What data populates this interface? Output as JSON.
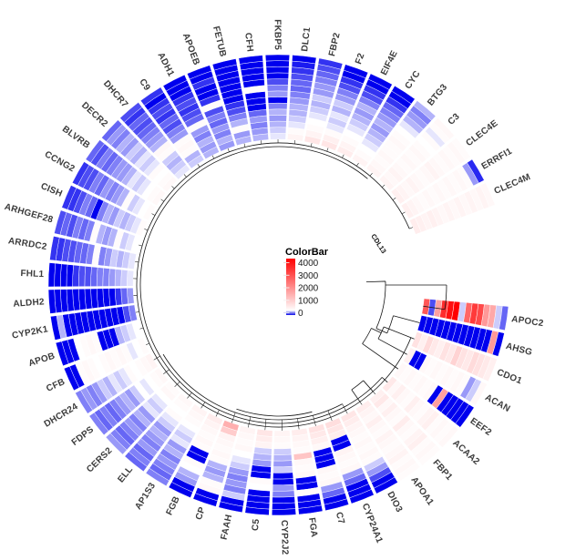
{
  "chart_data": {
    "type": "heatmap",
    "layout": "circular",
    "n_rings": 14,
    "ring_order": "inner_to_outer",
    "gap": {
      "start_deg": -5,
      "span_deg": 25
    },
    "center_annotation": "CDL13",
    "colorbar": {
      "title": "ColorBar",
      "ticks": [
        "4000",
        "3000",
        "2000",
        "1000",
        "0"
      ],
      "color_max": "#FF0000",
      "color_mid": "#FFFFFF",
      "color_zero": "#0000EE"
    },
    "genes_clockwise_from_gap": [
      "APOC2",
      "AHSG",
      "CDO1",
      "ACAN",
      "EEF2",
      "ACAA2",
      "FBP1",
      "APOA1",
      "DIO3",
      "CYP24A1",
      "C7",
      "FGA",
      "CYP2J2",
      "C5",
      "FAAH",
      "CP",
      "FGB",
      "AP1S3",
      "ELL",
      "CERS2",
      "FDPS",
      "DHCR24",
      "CFB",
      "APOB",
      "CYP2K1",
      "ALDH2",
      "FHL1",
      "ARRDC2",
      "ARHGEF28",
      "CISH",
      "CCNG2",
      "BLVRB",
      "DECR2",
      "DHCR7",
      "C9",
      "ADH1",
      "APOEB",
      "FETUB",
      "CFH",
      "FKBP5",
      "DLC1",
      "FBP2",
      "F2",
      "EIF4E",
      "CYC",
      "BTG3",
      "C3",
      "CLEC4E",
      "ERRFI1",
      "CLEC4M"
    ],
    "series": [
      {
        "name": "APOC2",
        "values": [
          2800,
          150,
          1800,
          3400,
          3800,
          4000,
          400,
          2600,
          3200,
          3000,
          1900,
          1700,
          400,
          200
        ]
      },
      {
        "name": "AHSG",
        "values": [
          0,
          0,
          0,
          0,
          0,
          0,
          0,
          0,
          0,
          0,
          0,
          0,
          1900,
          0
        ]
      },
      {
        "name": "CDO1",
        "values": [
          900,
          700,
          1000,
          800,
          700,
          900,
          800,
          1100,
          900,
          800,
          1000,
          900,
          800,
          700
        ]
      },
      {
        "name": "ACAN",
        "values": [
          700,
          0,
          0,
          600,
          550,
          600,
          550,
          600,
          550,
          600,
          550,
          300,
          400,
          600
        ]
      },
      {
        "name": "EEF2",
        "values": [
          600,
          550,
          600,
          550,
          600,
          550,
          600,
          0,
          1800,
          0,
          0,
          0,
          0,
          0
        ]
      },
      {
        "name": "ACAA2",
        "values": [
          800,
          600,
          700,
          600,
          550,
          700,
          600,
          550,
          650,
          700,
          550,
          600,
          550,
          600
        ]
      },
      {
        "name": "FBP1",
        "values": [
          700,
          800,
          600,
          700,
          600,
          550,
          750,
          600,
          550,
          650,
          700,
          550,
          600,
          550
        ]
      },
      {
        "name": "APOA1",
        "values": [
          750,
          650,
          600,
          700,
          600,
          550,
          650,
          600,
          550,
          600,
          650,
          550,
          600,
          550
        ]
      },
      {
        "name": "DIO3",
        "values": [
          850,
          750,
          650,
          600,
          550,
          600,
          550,
          600,
          550,
          400,
          300,
          150,
          0,
          0
        ]
      },
      {
        "name": "CYP24A1",
        "values": [
          950,
          850,
          750,
          0,
          0,
          650,
          600,
          550,
          600,
          300,
          200,
          0,
          0,
          0
        ]
      },
      {
        "name": "C7",
        "values": [
          900,
          800,
          700,
          600,
          0,
          0,
          0,
          600,
          550,
          600,
          300,
          200,
          0,
          0
        ]
      },
      {
        "name": "FGA",
        "values": [
          750,
          650,
          600,
          550,
          1300,
          600,
          550,
          600,
          0,
          0,
          550,
          0,
          0,
          0
        ]
      },
      {
        "name": "CYP2J2",
        "values": [
          650,
          600,
          550,
          400,
          350,
          300,
          400,
          0,
          0,
          300,
          250,
          0,
          0,
          0
        ]
      },
      {
        "name": "C5",
        "values": [
          850,
          750,
          650,
          400,
          350,
          300,
          0,
          0,
          550,
          500,
          0,
          0,
          0,
          0
        ]
      },
      {
        "name": "FAAH",
        "values": [
          650,
          600,
          550,
          600,
          500,
          450,
          400,
          300,
          250,
          300,
          250,
          400,
          0,
          0
        ]
      },
      {
        "name": "CP",
        "values": [
          1600,
          1200,
          650,
          600,
          550,
          600,
          550,
          350,
          300,
          350,
          550,
          600,
          0,
          0
        ]
      },
      {
        "name": "FGB",
        "values": [
          750,
          650,
          600,
          550,
          600,
          550,
          0,
          0,
          550,
          500,
          350,
          300,
          0,
          0
        ]
      },
      {
        "name": "AP1S3",
        "values": [
          650,
          600,
          550,
          500,
          450,
          400,
          450,
          300,
          350,
          250,
          300,
          250,
          200,
          250
        ]
      },
      {
        "name": "ELL",
        "values": [
          600,
          550,
          500,
          550,
          450,
          400,
          300,
          350,
          300,
          250,
          300,
          200,
          250,
          200
        ]
      },
      {
        "name": "CERS2",
        "values": [
          550,
          600,
          500,
          450,
          400,
          450,
          300,
          350,
          250,
          300,
          250,
          200,
          250,
          300
        ]
      },
      {
        "name": "FDPS",
        "values": [
          600,
          550,
          500,
          450,
          500,
          400,
          300,
          350,
          300,
          250,
          200,
          250,
          200,
          250
        ]
      },
      {
        "name": "DHCR24",
        "values": [
          650,
          600,
          550,
          500,
          550,
          450,
          400,
          450,
          350,
          400,
          300,
          250,
          300,
          250
        ]
      },
      {
        "name": "CFB",
        "values": [
          550,
          500,
          450,
          550,
          600,
          550,
          600,
          550,
          500,
          550,
          600,
          550,
          0,
          0
        ]
      },
      {
        "name": "APOB",
        "values": [
          500,
          450,
          400,
          350,
          0,
          0,
          0,
          550,
          600,
          550,
          500,
          0,
          0,
          0
        ]
      },
      {
        "name": "CYP2K1",
        "values": [
          250,
          150,
          0,
          0,
          0,
          0,
          0,
          0,
          0,
          0,
          0,
          0,
          350,
          0
        ]
      },
      {
        "name": "ALDH2",
        "values": [
          300,
          200,
          100,
          0,
          0,
          0,
          0,
          0,
          0,
          0,
          0,
          0,
          0,
          0
        ]
      },
      {
        "name": "FHL1",
        "values": [
          450,
          400,
          350,
          300,
          250,
          250,
          200,
          150,
          150,
          100,
          0,
          0,
          0,
          0
        ]
      },
      {
        "name": "ARRDC2",
        "values": [
          450,
          400,
          350,
          400,
          300,
          250,
          550,
          250,
          200,
          200,
          150,
          150,
          100,
          100
        ]
      },
      {
        "name": "ARHGEF28",
        "values": [
          500,
          450,
          400,
          550,
          350,
          300,
          350,
          550,
          250,
          200,
          250,
          150,
          200,
          150
        ]
      },
      {
        "name": "CISH",
        "values": [
          550,
          450,
          400,
          350,
          400,
          300,
          350,
          250,
          0,
          200,
          250,
          150,
          100,
          100
        ]
      },
      {
        "name": "CCNG2",
        "values": [
          550,
          500,
          450,
          400,
          550,
          350,
          300,
          250,
          300,
          200,
          250,
          150,
          150,
          100
        ]
      },
      {
        "name": "BLVRB",
        "values": [
          600,
          550,
          500,
          450,
          400,
          450,
          350,
          300,
          300,
          250,
          200,
          250,
          150,
          200
        ]
      },
      {
        "name": "DECR2",
        "values": [
          600,
          550,
          500,
          550,
          450,
          400,
          450,
          350,
          400,
          300,
          350,
          250,
          300,
          200
        ]
      },
      {
        "name": "DHCR7",
        "values": [
          450,
          400,
          350,
          400,
          550,
          600,
          350,
          300,
          250,
          200,
          150,
          200,
          100,
          150
        ]
      },
      {
        "name": "C9",
        "values": [
          400,
          350,
          550,
          600,
          550,
          300,
          250,
          150,
          200,
          100,
          150,
          100,
          0,
          100
        ]
      },
      {
        "name": "ADH1",
        "values": [
          350,
          300,
          350,
          250,
          300,
          550,
          200,
          150,
          100,
          150,
          100,
          0,
          0,
          0
        ]
      },
      {
        "name": "APOEB",
        "values": [
          300,
          350,
          250,
          300,
          200,
          250,
          150,
          550,
          100,
          0,
          0,
          100,
          0,
          0
        ]
      },
      {
        "name": "FETUB",
        "values": [
          350,
          300,
          550,
          350,
          250,
          150,
          100,
          0,
          0,
          0,
          0,
          0,
          0,
          0
        ]
      },
      {
        "name": "CFH",
        "values": [
          350,
          300,
          250,
          300,
          200,
          0,
          0,
          0,
          550,
          0,
          0,
          0,
          0,
          0
        ]
      },
      {
        "name": "FKBP5",
        "values": [
          450,
          400,
          350,
          300,
          350,
          250,
          0,
          300,
          250,
          150,
          0,
          0,
          0,
          0
        ]
      },
      {
        "name": "DLC1",
        "values": [
          650,
          550,
          450,
          400,
          350,
          350,
          300,
          250,
          200,
          200,
          150,
          100,
          50,
          0
        ]
      },
      {
        "name": "FBP2",
        "values": [
          850,
          650,
          550,
          500,
          450,
          400,
          350,
          400,
          300,
          300,
          250,
          200,
          150,
          100
        ]
      },
      {
        "name": "F2",
        "values": [
          850,
          700,
          550,
          450,
          400,
          450,
          350,
          400,
          300,
          250,
          150,
          100,
          0,
          0
        ]
      },
      {
        "name": "EIF4E",
        "values": [
          750,
          650,
          550,
          500,
          450,
          400,
          350,
          300,
          350,
          250,
          150,
          100,
          0,
          0
        ]
      },
      {
        "name": "CYC",
        "values": [
          650,
          550,
          500,
          450,
          400,
          350,
          300,
          350,
          300,
          250,
          200,
          100,
          0,
          0
        ]
      },
      {
        "name": "BTG3",
        "values": [
          650,
          600,
          550,
          600,
          550,
          550,
          600,
          550,
          500,
          450,
          350,
          300,
          250,
          350
        ]
      },
      {
        "name": "C3",
        "values": [
          650,
          600,
          650,
          600,
          550,
          600,
          550,
          600,
          550,
          500,
          550,
          450,
          550,
          600
        ]
      },
      {
        "name": "CLEC4E",
        "values": [
          700,
          650,
          600,
          650,
          600,
          550,
          600,
          650,
          600,
          550,
          600,
          550,
          600,
          550
        ]
      },
      {
        "name": "ERRFI1",
        "values": [
          700,
          650,
          600,
          550,
          600,
          550,
          600,
          550,
          600,
          550,
          600,
          550,
          300,
          80
        ]
      },
      {
        "name": "CLEC4M",
        "values": [
          750,
          700,
          650,
          700,
          650,
          600,
          650,
          600,
          650,
          600,
          650,
          600,
          650,
          600
        ]
      }
    ]
  }
}
